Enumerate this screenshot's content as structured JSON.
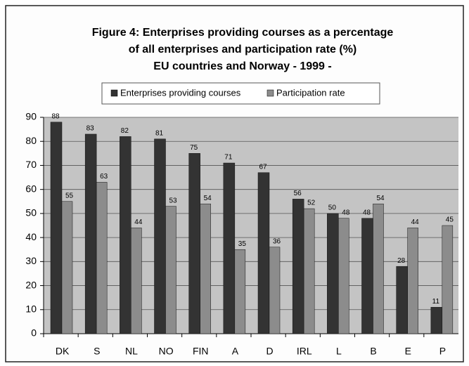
{
  "chart_data": {
    "type": "bar",
    "title": [
      "Figure 4: Enterprises providing courses as a percentage",
      "of all enterprises and participation rate (%)",
      "EU countries and Norway - 1999 -"
    ],
    "categories": [
      "DK",
      "S",
      "NL",
      "NO",
      "FIN",
      "A",
      "D",
      "IRL",
      "L",
      "B",
      "E",
      "P"
    ],
    "series": [
      {
        "name": "Enterprises providing courses",
        "color": "#333333",
        "values": [
          88,
          83,
          82,
          81,
          75,
          71,
          67,
          56,
          50,
          48,
          28,
          11
        ]
      },
      {
        "name": "Participation rate",
        "color": "#8c8c8c",
        "values": [
          55,
          63,
          44,
          53,
          54,
          35,
          36,
          52,
          48,
          54,
          44,
          45
        ]
      }
    ],
    "ylim": [
      0,
      90
    ],
    "yticks": [
      0,
      10,
      20,
      30,
      40,
      50,
      60,
      70,
      80,
      90
    ],
    "grid": true,
    "legend": "top"
  }
}
